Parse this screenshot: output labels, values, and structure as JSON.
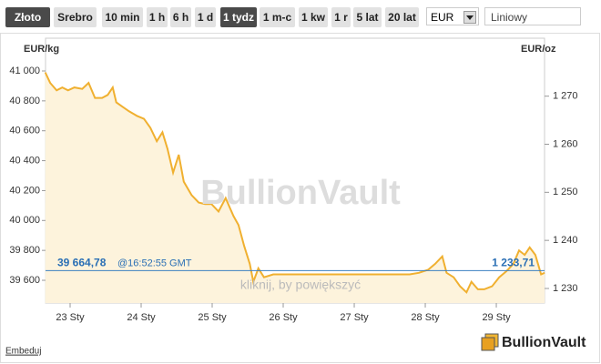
{
  "toolbar": {
    "metals": [
      {
        "label": "Złoto",
        "selected": true
      },
      {
        "label": "Srebro",
        "selected": false
      }
    ],
    "periods": [
      {
        "label": "10 min",
        "selected": false
      },
      {
        "label": "1 h",
        "selected": false
      },
      {
        "label": "6 h",
        "selected": false
      },
      {
        "label": "1 d",
        "selected": false
      },
      {
        "label": "1 tydz",
        "selected": true
      },
      {
        "label": "1 m-c",
        "selected": false
      },
      {
        "label": "1 kw",
        "selected": false
      },
      {
        "label": "1 r",
        "selected": false
      },
      {
        "label": "5 lat",
        "selected": false
      },
      {
        "label": "20 lat",
        "selected": false
      }
    ],
    "currency": "EUR",
    "chart_style": "Liniowy"
  },
  "chart_data": {
    "type": "area",
    "ylabel": "EUR/kg",
    "y2label": "EUR/oz",
    "watermark": "BullionVault",
    "hint": "kliknij, by powiększyć",
    "color": "#f0b030",
    "fill": "#fdf3dc",
    "xlim": [
      22.654,
      29.679
    ],
    "xticks": [
      {
        "value": 23,
        "label": "23 Sty"
      },
      {
        "value": 24,
        "label": "24 Sty"
      },
      {
        "value": 25,
        "label": "25 Sty"
      },
      {
        "value": 26,
        "label": "26 Sty"
      },
      {
        "value": 27,
        "label": "27 Sty"
      },
      {
        "value": 28,
        "label": "28 Sty"
      },
      {
        "value": 29,
        "label": "29 Sty"
      }
    ],
    "ylim": [
      39448,
      41219
    ],
    "yticks": [
      {
        "value": 39600,
        "label": "39 600"
      },
      {
        "value": 39800,
        "label": "39 800"
      },
      {
        "value": 40000,
        "label": "40 000"
      },
      {
        "value": 40200,
        "label": "40 200"
      },
      {
        "value": 40400,
        "label": "40 400"
      },
      {
        "value": 40600,
        "label": "40 600"
      },
      {
        "value": 40800,
        "label": "40 800"
      },
      {
        "value": 41000,
        "label": "41 000"
      }
    ],
    "y2lim": [
      1226.97,
      1282.05
    ],
    "y2ticks": [
      {
        "value": 1230,
        "label": "1 230"
      },
      {
        "value": 1240,
        "label": "1 240"
      },
      {
        "value": 1250,
        "label": "1 250"
      },
      {
        "value": 1260,
        "label": "1 260"
      },
      {
        "value": 1270,
        "label": "1 270"
      }
    ],
    "x": [
      22.65,
      22.72,
      22.81,
      22.89,
      22.97,
      23.06,
      23.17,
      23.26,
      23.35,
      23.45,
      23.53,
      23.6,
      23.65,
      23.74,
      23.83,
      23.94,
      24.04,
      24.13,
      24.22,
      24.3,
      24.37,
      24.45,
      24.53,
      24.6,
      24.71,
      24.81,
      24.9,
      24.99,
      25.09,
      25.19,
      25.3,
      25.37,
      25.45,
      25.53,
      25.58,
      25.65,
      25.73,
      25.86,
      26.5,
      27.14,
      27.78,
      27.91,
      28.04,
      28.14,
      28.24,
      28.3,
      28.4,
      28.49,
      28.58,
      28.65,
      28.74,
      28.83,
      28.94,
      29.04,
      29.14,
      29.24,
      29.32,
      29.4,
      29.47,
      29.55,
      29.63,
      29.68
    ],
    "series": [
      {
        "name": "EUR/kg",
        "values": [
          40990,
          40920,
          40870,
          40890,
          40870,
          40890,
          40880,
          40920,
          40820,
          40820,
          40840,
          40890,
          40790,
          40760,
          40730,
          40700,
          40680,
          40620,
          40530,
          40590,
          40480,
          40320,
          40440,
          40260,
          40170,
          40120,
          40110,
          40110,
          40060,
          40150,
          40030,
          39970,
          39830,
          39710,
          39590,
          39680,
          39620,
          39640,
          39640,
          39640,
          39640,
          39650,
          39670,
          39710,
          39760,
          39650,
          39620,
          39560,
          39520,
          39590,
          39540,
          39540,
          39560,
          39620,
          39660,
          39710,
          39800,
          39770,
          39820,
          39770,
          39640,
          39650
        ]
      }
    ],
    "current_price": {
      "value": 39664.78,
      "label": "39 664,78"
    },
    "current_time": "@16:52:55 GMT",
    "current_price_oz": {
      "value": 1233.71,
      "label": "1 233,71"
    }
  },
  "footer": {
    "embed": "Embeduj",
    "logo": "BullionVault"
  }
}
